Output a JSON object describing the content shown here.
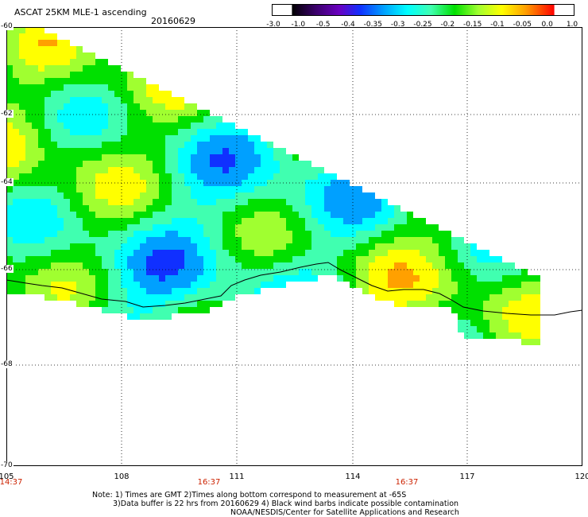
{
  "header": {
    "title": "ASCAT 25KM MLE-1 ascending",
    "date": "20160629"
  },
  "colorbar": {
    "labels": [
      "-3.0",
      "-1.0",
      "-0.5",
      "-0.4",
      "-0.35",
      "-0.3",
      "-0.25",
      "-0.2",
      "-0.15",
      "-0.1",
      "-0.05",
      "0.0",
      "1.0"
    ],
    "colors": [
      "#000000",
      "#3a006a",
      "#6a00b0",
      "#2040ff",
      "#00a0ff",
      "#00ffff",
      "#40ffa0",
      "#00e000",
      "#a0ff40",
      "#ffff00",
      "#ffa000",
      "#ff4000",
      "#ff0000"
    ]
  },
  "map": {
    "lat_labels": [
      "-60",
      "-62",
      "-64",
      "-66",
      "-68",
      "-70"
    ],
    "lon_labels": [
      "105",
      "108",
      "111",
      "114",
      "117",
      "120"
    ],
    "time_labels": [
      "14:37",
      "16:37",
      "16:37"
    ]
  },
  "footer": {
    "line1": "Note: 1) Times are GMT 2)Times along bottom correspond to measurement at -65S",
    "line2": "3)Data buffer is 22 hrs from 20160629 4) Black wind barbs indicate possible contamination",
    "line3": "NOAA/NESDIS/Center for Satellite Applications and Research"
  }
}
